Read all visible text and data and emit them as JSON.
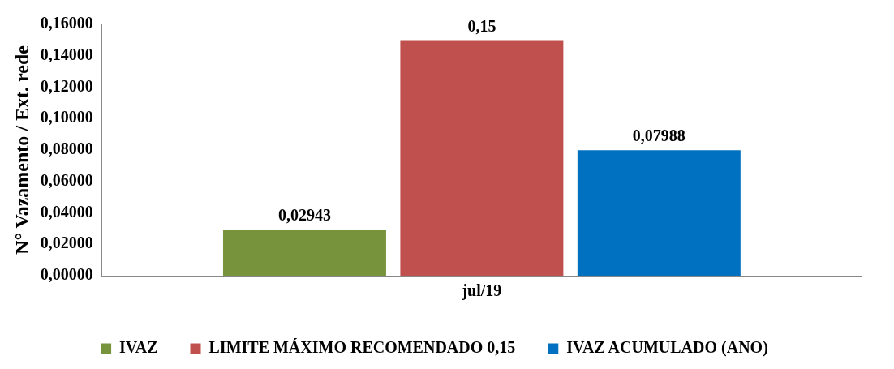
{
  "chart_data": {
    "type": "bar",
    "ylabel": "N° Vazamento / Ext. rede",
    "categories": [
      "jul/19"
    ],
    "series": [
      {
        "name": "IVAZ",
        "color": "#77933c",
        "values": [
          0.02943
        ],
        "value_labels": [
          "0,02943"
        ]
      },
      {
        "name": "LIMITE MÁXIMO RECOMENDADO 0,15",
        "color": "#c0504d",
        "values": [
          0.15
        ],
        "value_labels": [
          "0,15"
        ]
      },
      {
        "name": "IVAZ ACUMULADO (ANO)",
        "color": "#0070c0",
        "values": [
          0.07988
        ],
        "value_labels": [
          "0,07988"
        ]
      }
    ],
    "ylim": [
      0,
      0.16
    ],
    "yticks": [
      {
        "value": 0,
        "label": "0,00000"
      },
      {
        "value": 0.02,
        "label": "0,02000"
      },
      {
        "value": 0.04,
        "label": "0,04000"
      },
      {
        "value": 0.06,
        "label": "0,06000"
      },
      {
        "value": 0.08,
        "label": "0,08000"
      },
      {
        "value": 0.1,
        "label": "0,10000"
      },
      {
        "value": 0.12,
        "label": "0,12000"
      },
      {
        "value": 0.14,
        "label": "0,14000"
      },
      {
        "value": 0.16,
        "label": "0,16000"
      }
    ],
    "grid": false,
    "legend": "bottom"
  }
}
